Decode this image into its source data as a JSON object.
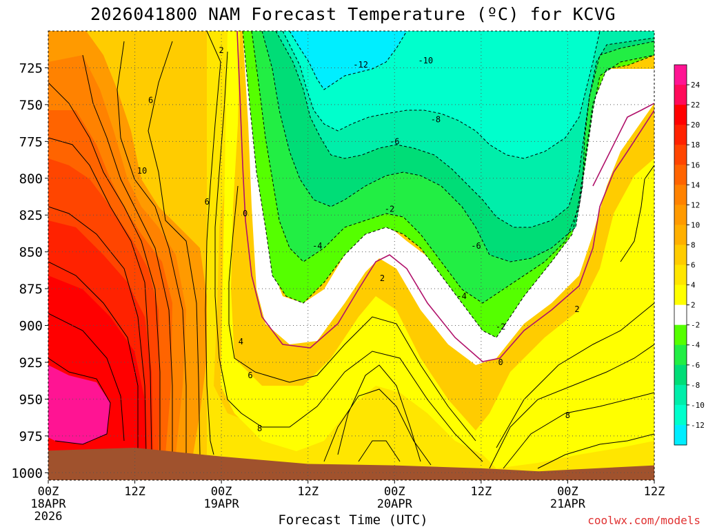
{
  "title": "2026041800 NAM Forecast Temperature (ºC) for KCVG",
  "x_axis_title": "Forecast Time (UTC)",
  "credit": "coolwx.com/models",
  "colors": {
    "ground": "#a0522d",
    "zero_line": "#b0106a",
    "grid": "#555555"
  },
  "chart_data": {
    "type": "heatmap",
    "subtype": "time-pressure filled contour",
    "x_unit": "hours since 2026-04-18 00Z",
    "xlim": [
      0,
      84
    ],
    "y_unit": "hPa",
    "ylim": [
      700,
      1005
    ],
    "y_ticks": [
      725,
      750,
      775,
      800,
      825,
      850,
      875,
      900,
      925,
      950,
      975,
      1000
    ],
    "x_ticks": [
      {
        "hour": 0,
        "label": "00Z",
        "sub": "18APR",
        "sub2": "2026"
      },
      {
        "hour": 12,
        "label": "12Z",
        "sub": "",
        "sub2": ""
      },
      {
        "hour": 24,
        "label": "00Z",
        "sub": "19APR",
        "sub2": ""
      },
      {
        "hour": 36,
        "label": "12Z",
        "sub": "",
        "sub2": ""
      },
      {
        "hour": 48,
        "label": "00Z",
        "sub": "20APR",
        "sub2": ""
      },
      {
        "hour": 60,
        "label": "12Z",
        "sub": "",
        "sub2": ""
      },
      {
        "hour": 72,
        "label": "00Z",
        "sub": "21APR",
        "sub2": ""
      },
      {
        "hour": 84,
        "label": "12Z",
        "sub": "",
        "sub2": ""
      }
    ],
    "colorbar": [
      {
        "label": "24",
        "color": "#ff1493"
      },
      {
        "label": "22",
        "color": "#ff0a5a"
      },
      {
        "label": "20",
        "color": "#ff0000"
      },
      {
        "label": "18",
        "color": "#ff2200"
      },
      {
        "label": "16",
        "color": "#ff4500"
      },
      {
        "label": "14",
        "color": "#ff6400"
      },
      {
        "label": "12",
        "color": "#ff8200"
      },
      {
        "label": "10",
        "color": "#ff9a00"
      },
      {
        "label": "8",
        "color": "#ffb000"
      },
      {
        "label": "6",
        "color": "#ffcc00"
      },
      {
        "label": "4",
        "color": "#ffe600"
      },
      {
        "label": "2",
        "color": "#ffff00"
      },
      {
        "label": "-2",
        "color": "#ffffff"
      },
      {
        "label": "-4",
        "color": "#55ff00"
      },
      {
        "label": "-6",
        "color": "#22ee44"
      },
      {
        "label": "-8",
        "color": "#00dd77"
      },
      {
        "label": "-10",
        "color": "#00eeaa"
      },
      {
        "label": "-12",
        "color": "#00ffcc"
      },
      {
        "label": "",
        "color": "#00eeff"
      }
    ],
    "surface_pressure": [
      [
        0,
        985
      ],
      [
        12,
        983
      ],
      [
        24,
        989
      ],
      [
        36,
        994
      ],
      [
        48,
        995
      ],
      [
        60,
        997
      ],
      [
        68,
        999
      ],
      [
        72,
        998
      ],
      [
        84,
        995
      ]
    ],
    "isotherm_labels": [
      {
        "t": "2",
        "hour": 24.0,
        "p": 713
      },
      {
        "t": "6",
        "hour": 14.2,
        "p": 747
      },
      {
        "t": "10",
        "hour": 13.0,
        "p": 795
      },
      {
        "t": "6",
        "hour": 22.0,
        "p": 816
      },
      {
        "t": "0",
        "hour": 27.3,
        "p": 824
      },
      {
        "t": "-12",
        "hour": 43.3,
        "p": 723
      },
      {
        "t": "-10",
        "hour": 52.3,
        "p": 720
      },
      {
        "t": "-8",
        "hour": 53.7,
        "p": 760
      },
      {
        "t": "-6",
        "hour": 48.0,
        "p": 775
      },
      {
        "t": "-2",
        "hour": 47.3,
        "p": 821
      },
      {
        "t": "-4",
        "hour": 37.3,
        "p": 846
      },
      {
        "t": "2",
        "hour": 46.3,
        "p": 868
      },
      {
        "t": "-6",
        "hour": 59.3,
        "p": 846
      },
      {
        "t": "-4",
        "hour": 57.3,
        "p": 880
      },
      {
        "t": "-2",
        "hour": 62.7,
        "p": 901
      },
      {
        "t": "0",
        "hour": 62.7,
        "p": 925
      },
      {
        "t": "2",
        "hour": 73.3,
        "p": 889
      },
      {
        "t": "4",
        "hour": 26.7,
        "p": 911
      },
      {
        "t": "6",
        "hour": 28.0,
        "p": 934
      },
      {
        "t": "8",
        "hour": 29.3,
        "p": 970
      },
      {
        "t": "8",
        "hour": 72.0,
        "p": 961
      }
    ]
  }
}
